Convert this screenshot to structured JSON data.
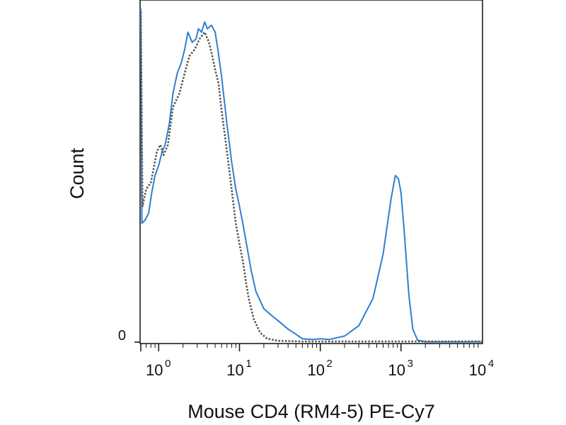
{
  "chart_data": {
    "type": "line",
    "title": "",
    "xlabel": "Mouse CD4 (RM4-5) PE-Cy7",
    "ylabel": "Count",
    "xscale": "log",
    "xlim": [
      0.6,
      10000
    ],
    "ylim": [
      0,
      1
    ],
    "x_ticks": [
      {
        "value": 1,
        "base": "10",
        "exp": "0"
      },
      {
        "value": 10,
        "base": "10",
        "exp": "1"
      },
      {
        "value": 100,
        "base": "10",
        "exp": "2"
      },
      {
        "value": 1000,
        "base": "10",
        "exp": "3"
      },
      {
        "value": 10000,
        "base": "10",
        "exp": "4"
      }
    ],
    "y_ticks": [
      {
        "value": 0,
        "label": "0"
      }
    ],
    "grid": false,
    "legend": "none",
    "series": [
      {
        "style": "solid",
        "color": "#2f7fd0",
        "points": [
          [
            0.6,
            0.98
          ],
          [
            0.62,
            0.35
          ],
          [
            0.68,
            0.36
          ],
          [
            0.75,
            0.38
          ],
          [
            0.82,
            0.44
          ],
          [
            0.9,
            0.49
          ],
          [
            1.0,
            0.52
          ],
          [
            1.1,
            0.56
          ],
          [
            1.2,
            0.58
          ],
          [
            1.35,
            0.64
          ],
          [
            1.5,
            0.73
          ],
          [
            1.7,
            0.79
          ],
          [
            1.9,
            0.82
          ],
          [
            2.1,
            0.86
          ],
          [
            2.3,
            0.91
          ],
          [
            2.6,
            0.88
          ],
          [
            2.9,
            0.89
          ],
          [
            3.1,
            0.92
          ],
          [
            3.4,
            0.91
          ],
          [
            3.7,
            0.94
          ],
          [
            4.0,
            0.92
          ],
          [
            4.5,
            0.93
          ],
          [
            5.0,
            0.91
          ],
          [
            5.4,
            0.86
          ],
          [
            6.0,
            0.78
          ],
          [
            7.0,
            0.64
          ],
          [
            8.0,
            0.53
          ],
          [
            9.0,
            0.45
          ],
          [
            10.0,
            0.4
          ],
          [
            11.0,
            0.35
          ],
          [
            12.0,
            0.3
          ],
          [
            14.0,
            0.21
          ],
          [
            16.0,
            0.15
          ],
          [
            20.0,
            0.1
          ],
          [
            25.0,
            0.08
          ],
          [
            30.0,
            0.065
          ],
          [
            40.0,
            0.04
          ],
          [
            50.0,
            0.025
          ],
          [
            60.0,
            0.012
          ],
          [
            80.0,
            0.01
          ],
          [
            100.0,
            0.012
          ],
          [
            130.0,
            0.01
          ],
          [
            200.0,
            0.02
          ],
          [
            300.0,
            0.05
          ],
          [
            450.0,
            0.13
          ],
          [
            600.0,
            0.26
          ],
          [
            750.0,
            0.42
          ],
          [
            850.0,
            0.49
          ],
          [
            930.0,
            0.48
          ],
          [
            1000.0,
            0.44
          ],
          [
            1100.0,
            0.32
          ],
          [
            1250.0,
            0.14
          ],
          [
            1400.0,
            0.04
          ],
          [
            1600.0,
            0.008
          ],
          [
            2000.0,
            0.003
          ],
          [
            10000.0,
            0.003
          ]
        ]
      },
      {
        "style": "dotted",
        "color": "#555555",
        "points": [
          [
            0.6,
            0.97
          ],
          [
            0.63,
            0.4
          ],
          [
            0.7,
            0.45
          ],
          [
            0.8,
            0.47
          ],
          [
            0.95,
            0.56
          ],
          [
            1.05,
            0.58
          ],
          [
            1.15,
            0.55
          ],
          [
            1.3,
            0.58
          ],
          [
            1.5,
            0.69
          ],
          [
            1.8,
            0.73
          ],
          [
            2.1,
            0.79
          ],
          [
            2.4,
            0.84
          ],
          [
            2.8,
            0.86
          ],
          [
            3.2,
            0.89
          ],
          [
            3.7,
            0.91
          ],
          [
            4.2,
            0.88
          ],
          [
            4.6,
            0.84
          ],
          [
            5.0,
            0.8
          ],
          [
            5.5,
            0.76
          ],
          [
            6.0,
            0.68
          ],
          [
            7.0,
            0.56
          ],
          [
            8.0,
            0.45
          ],
          [
            9.0,
            0.35
          ],
          [
            10.0,
            0.29
          ],
          [
            11.0,
            0.24
          ],
          [
            12.0,
            0.18
          ],
          [
            13.0,
            0.13
          ],
          [
            15.0,
            0.07
          ],
          [
            18.0,
            0.03
          ],
          [
            22.0,
            0.012
          ],
          [
            30.0,
            0.006
          ],
          [
            60.0,
            0.004
          ],
          [
            100.0,
            0.004
          ],
          [
            10000.0,
            0.004
          ]
        ]
      }
    ]
  }
}
